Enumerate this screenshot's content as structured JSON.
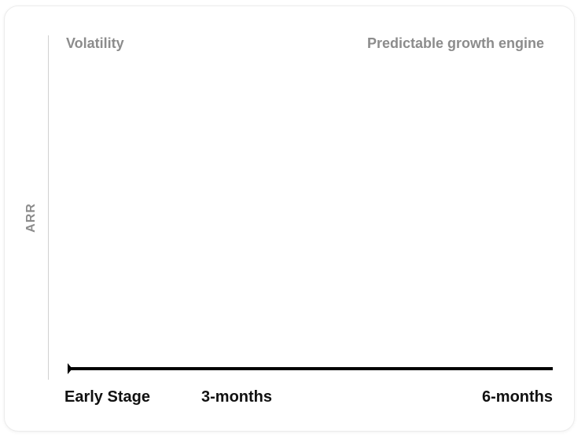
{
  "chart_data": {
    "type": "line",
    "ylabel": "ARR",
    "xlabel": "",
    "categories": [
      "Early Stage",
      "3-months",
      "6-months"
    ],
    "annotations": {
      "left": "Volatility",
      "right": "Predictable growth engine"
    },
    "series": [],
    "grid": false
  },
  "colors": {
    "axis_line": "#000000",
    "y_axis": "#d0d0d0",
    "muted_text": "#8c8c8c",
    "tick_text": "#111111"
  }
}
